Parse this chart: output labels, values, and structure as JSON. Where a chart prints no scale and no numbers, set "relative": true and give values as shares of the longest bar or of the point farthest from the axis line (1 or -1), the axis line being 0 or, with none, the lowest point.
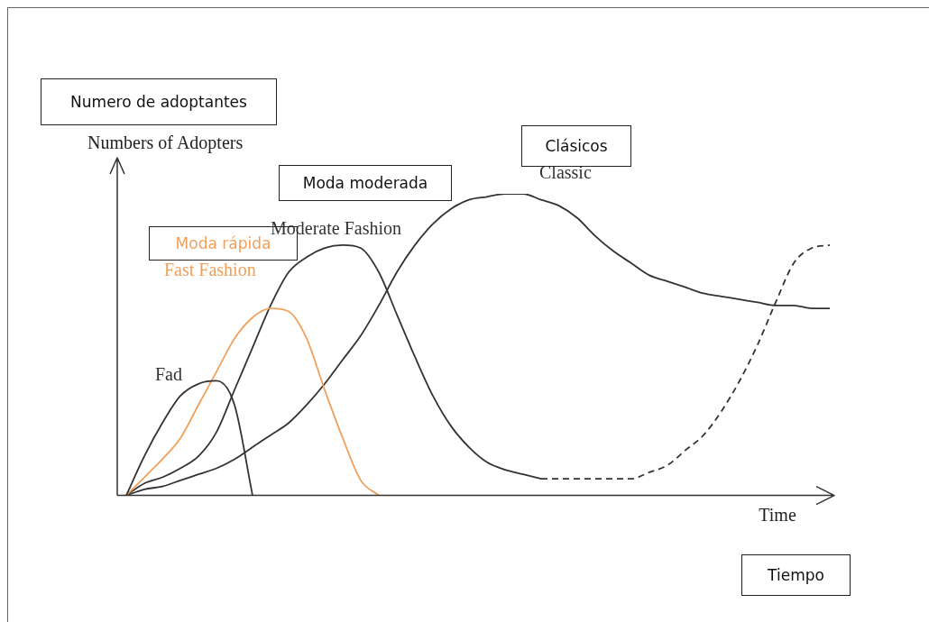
{
  "chart_data": {
    "type": "line",
    "relative": true,
    "xlabel": "Time",
    "ylabel": "Numbers of Adopters",
    "marker": "none",
    "legend": false,
    "categories": [
      null,
      null,
      null,
      null,
      null,
      null,
      null,
      null,
      null,
      null,
      null,
      null,
      null,
      null,
      null,
      null,
      null,
      null,
      null,
      null,
      null,
      null,
      null,
      null,
      null,
      null,
      null,
      null,
      null,
      null,
      null,
      null,
      null,
      null,
      null,
      null,
      null,
      null,
      null,
      null
    ],
    "series": [
      {
        "name": "Fad",
        "color": "#333333",
        "values": [
          0,
          0.13,
          0.24,
          0.33,
          0.37,
          0.38,
          0.3,
          0,
          null,
          null,
          null,
          null,
          null,
          null,
          null,
          null,
          null,
          null,
          null,
          null,
          null,
          null,
          null,
          null,
          null,
          null,
          null,
          null,
          null,
          null,
          null,
          null,
          null,
          null,
          null,
          null,
          null,
          null,
          null,
          null
        ]
      },
      {
        "name": "Fast Fashion",
        "color": "#f0a05a",
        "values": [
          0,
          0.06,
          0.12,
          0.19,
          0.3,
          0.41,
          0.52,
          0.59,
          0.62,
          0.61,
          0.52,
          0.35,
          0.19,
          0.05,
          0,
          null,
          null,
          null,
          null,
          null,
          null,
          null,
          null,
          null,
          null,
          null,
          null,
          null,
          null,
          null,
          null,
          null,
          null,
          null,
          null,
          null,
          null,
          null,
          null,
          null
        ]
      },
      {
        "name": "Moderate Fashion",
        "color": "#333333",
        "values": [
          0,
          0.04,
          0.06,
          0.09,
          0.13,
          0.21,
          0.35,
          0.49,
          0.63,
          0.74,
          0.79,
          0.82,
          0.83,
          0.82,
          0.74,
          0.6,
          0.46,
          0.33,
          0.23,
          0.16,
          0.11,
          0.085,
          0.07,
          0.055,
          null,
          null,
          null,
          null,
          null,
          null,
          null,
          null,
          null,
          null,
          null,
          null,
          null,
          null,
          null,
          null
        ]
      },
      {
        "color": "#333333",
        "line_style": "dashed",
        "values": [
          null,
          null,
          null,
          null,
          null,
          null,
          null,
          null,
          null,
          null,
          null,
          null,
          null,
          null,
          null,
          null,
          null,
          null,
          null,
          null,
          null,
          null,
          null,
          0.055,
          0.055,
          0.055,
          0.055,
          0.055,
          0.055,
          0.077,
          0.1,
          0.15,
          0.2,
          0.28,
          0.38,
          0.5,
          0.64,
          0.77,
          0.82,
          0.83
        ]
      },
      {
        "name": "Classic",
        "color": "#333333",
        "values": [
          0,
          0.02,
          0.03,
          0.05,
          0.07,
          0.09,
          0.12,
          0.16,
          0.2,
          0.24,
          0.3,
          0.37,
          0.45,
          0.53,
          0.63,
          0.74,
          0.83,
          0.9,
          0.95,
          0.98,
          0.99,
          1,
          1,
          0.98,
          0.96,
          0.92,
          0.86,
          0.81,
          0.77,
          0.73,
          0.71,
          0.69,
          0.67,
          0.66,
          0.65,
          0.64,
          0.63,
          0.63,
          0.62,
          0.62
        ]
      }
    ],
    "annotations": [
      "Numero de adoptantes",
      "Moda rápida",
      "Moda moderada",
      "Clásicos",
      "Tiempo"
    ]
  }
}
